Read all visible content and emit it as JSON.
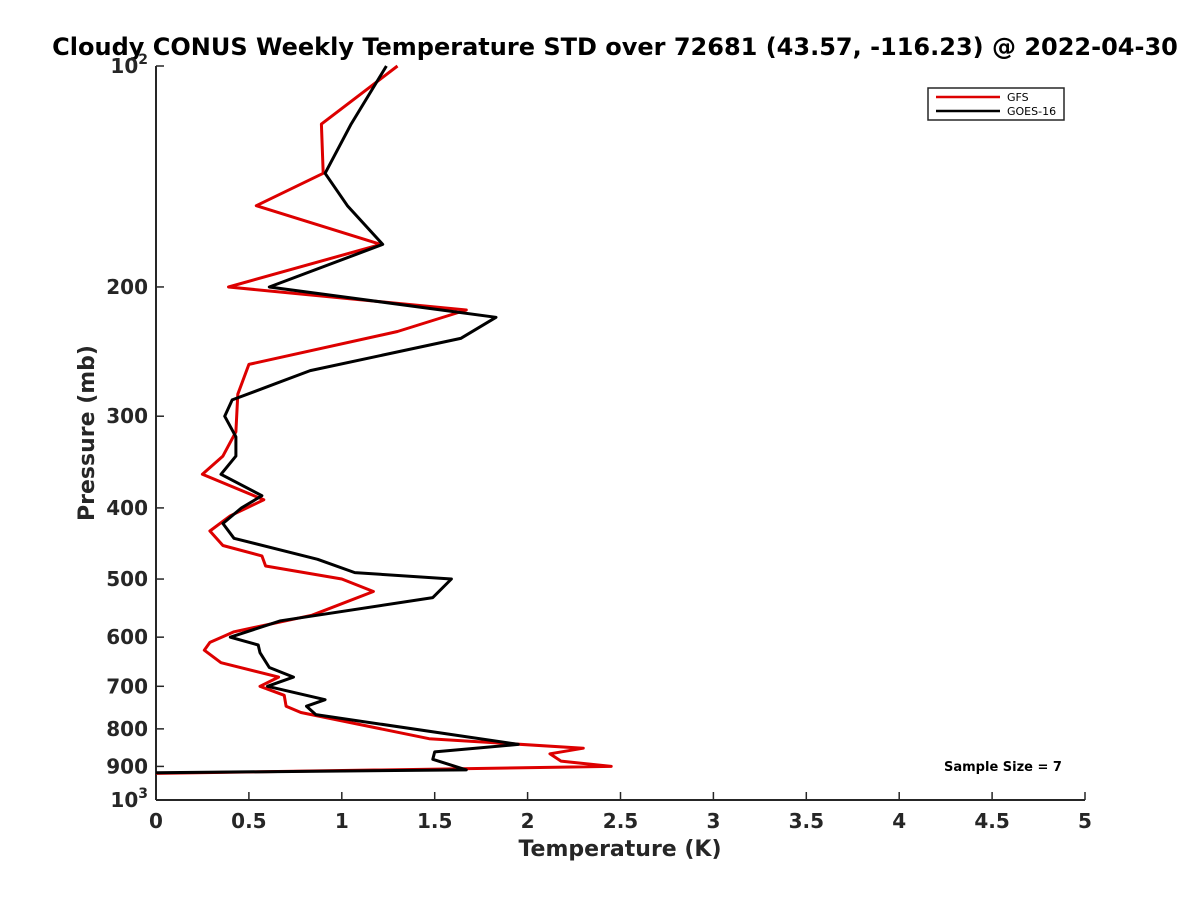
{
  "chart_data": {
    "type": "line",
    "title": "Cloudy CONUS Weekly Temperature STD over 72681 (43.57, -116.23) @ 2022-04-30",
    "xlabel": "Temperature (K)",
    "ylabel": "Pressure (mb)",
    "xlim": [
      0,
      5
    ],
    "ylim": [
      100,
      1000
    ],
    "y_scale": "log",
    "y_reversed": true,
    "x_ticks": [
      "0",
      "0.5",
      "1",
      "1.5",
      "2",
      "2.5",
      "3",
      "3.5",
      "4",
      "4.5",
      "5"
    ],
    "y_ticks": [
      {
        "value": 100,
        "base": "10",
        "exp": "2"
      },
      {
        "value": 200,
        "label": "200"
      },
      {
        "value": 300,
        "label": "300"
      },
      {
        "value": 400,
        "label": "400"
      },
      {
        "value": 500,
        "label": "500"
      },
      {
        "value": 600,
        "label": "600"
      },
      {
        "value": 700,
        "label": "700"
      },
      {
        "value": 800,
        "label": "800"
      },
      {
        "value": 900,
        "label": "900"
      },
      {
        "value": 1000,
        "base": "10",
        "exp": "3"
      }
    ],
    "grid": false,
    "legend_position": "top-right",
    "annotation": "Sample Size = 7",
    "series": [
      {
        "name": "GFS",
        "color": "#dd0000",
        "points": [
          [
            1.3,
            100
          ],
          [
            0.89,
            120
          ],
          [
            0.9,
            140
          ],
          [
            0.54,
            155
          ],
          [
            1.21,
            175
          ],
          [
            0.39,
            200
          ],
          [
            1.67,
            215
          ],
          [
            1.3,
            230
          ],
          [
            0.5,
            255
          ],
          [
            0.44,
            280
          ],
          [
            0.43,
            315
          ],
          [
            0.36,
            340
          ],
          [
            0.25,
            360
          ],
          [
            0.58,
            390
          ],
          [
            0.4,
            410
          ],
          [
            0.29,
            430
          ],
          [
            0.36,
            450
          ],
          [
            0.57,
            465
          ],
          [
            0.59,
            480
          ],
          [
            1.0,
            500
          ],
          [
            1.17,
            520
          ],
          [
            0.84,
            560
          ],
          [
            0.42,
            590
          ],
          [
            0.29,
            610
          ],
          [
            0.26,
            625
          ],
          [
            0.35,
            650
          ],
          [
            0.66,
            680
          ],
          [
            0.56,
            700
          ],
          [
            0.69,
            720
          ],
          [
            0.7,
            745
          ],
          [
            0.78,
            760
          ],
          [
            1.47,
            825
          ],
          [
            2.3,
            850
          ],
          [
            2.12,
            865
          ],
          [
            2.18,
            885
          ],
          [
            2.45,
            900
          ],
          [
            0.0,
            920
          ]
        ]
      },
      {
        "name": "GOES-16",
        "color": "#000000",
        "points": [
          [
            1.24,
            100
          ],
          [
            1.05,
            120
          ],
          [
            0.91,
            140
          ],
          [
            1.03,
            155
          ],
          [
            1.22,
            175
          ],
          [
            0.61,
            200
          ],
          [
            1.83,
            220
          ],
          [
            1.64,
            235
          ],
          [
            0.83,
            260
          ],
          [
            0.41,
            285
          ],
          [
            0.37,
            300
          ],
          [
            0.43,
            320
          ],
          [
            0.43,
            340
          ],
          [
            0.35,
            360
          ],
          [
            0.57,
            385
          ],
          [
            0.46,
            400
          ],
          [
            0.36,
            420
          ],
          [
            0.42,
            440
          ],
          [
            0.87,
            470
          ],
          [
            1.07,
            490
          ],
          [
            1.59,
            500
          ],
          [
            1.49,
            530
          ],
          [
            0.67,
            570
          ],
          [
            0.4,
            600
          ],
          [
            0.55,
            615
          ],
          [
            0.56,
            630
          ],
          [
            0.61,
            660
          ],
          [
            0.74,
            680
          ],
          [
            0.6,
            700
          ],
          [
            0.91,
            730
          ],
          [
            0.81,
            745
          ],
          [
            0.86,
            765
          ],
          [
            1.95,
            840
          ],
          [
            1.5,
            860
          ],
          [
            1.49,
            880
          ],
          [
            1.67,
            910
          ],
          [
            0.0,
            918
          ]
        ]
      }
    ]
  }
}
